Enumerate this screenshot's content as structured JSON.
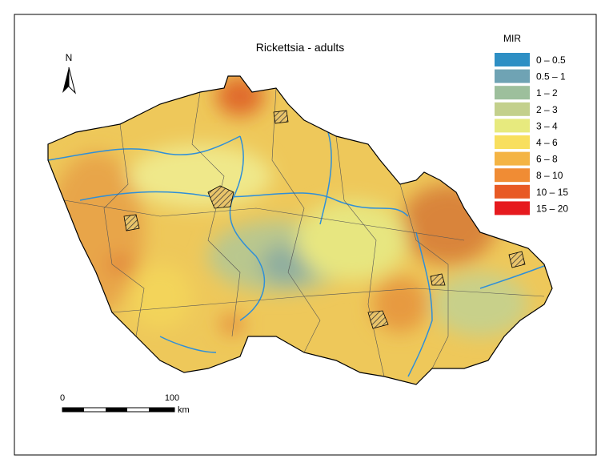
{
  "map": {
    "title": "Rickettsia - adults",
    "north": "N",
    "legend": {
      "title": "MIR",
      "items": [
        {
          "label": "0 – 0.5",
          "color": "#2e8fc4"
        },
        {
          "label": "0.5 – 1",
          "color": "#6fa3b4"
        },
        {
          "label": "1 – 2",
          "color": "#9dbf9c"
        },
        {
          "label": "2 – 3",
          "color": "#c3d08c"
        },
        {
          "label": "3 – 4",
          "color": "#e7ea7e"
        },
        {
          "label": "4 – 6",
          "color": "#f8df5e"
        },
        {
          "label": "6 – 8",
          "color": "#f4b444"
        },
        {
          "label": "8 – 10",
          "color": "#f08c34"
        },
        {
          "label": "10 – 15",
          "color": "#e85a24"
        },
        {
          "label": "15 – 20",
          "color": "#e61a1e"
        }
      ]
    },
    "scale": {
      "start": "0",
      "end": "100",
      "unit": "km"
    }
  }
}
